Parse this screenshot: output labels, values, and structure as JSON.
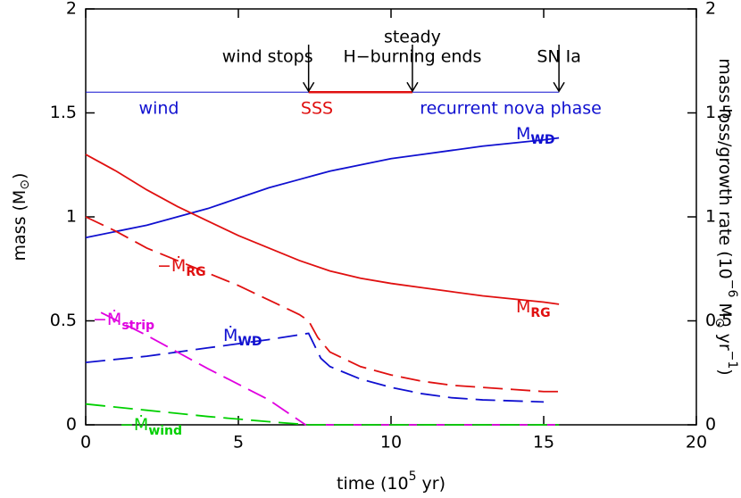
{
  "chart_data": {
    "type": "line",
    "xlabel": [
      "time (10",
      "5",
      " yr)"
    ],
    "ylabel": [
      "mass (M",
      "⊙",
      ")"
    ],
    "y2label": [
      "mass loss/growth rate (10",
      "−6",
      " M",
      "⊙",
      " yr",
      "−1",
      ")"
    ],
    "xlim": [
      0,
      20
    ],
    "xticks": [
      0,
      5,
      10,
      15,
      20
    ],
    "ylim": [
      0,
      2
    ],
    "yticks": [
      0,
      0.5,
      1,
      1.5,
      2
    ],
    "y2lim": [
      0,
      2
    ],
    "y2ticks": [
      0,
      0.5,
      1,
      1.5,
      2
    ],
    "series": [
      {
        "label": "M",
        "label_sub": "WD",
        "color": "#1010d0",
        "dashed": false,
        "x": [
          0,
          1,
          2,
          3,
          4,
          5,
          6,
          7,
          7.5,
          8,
          9,
          10,
          11,
          12,
          13,
          14,
          15,
          15.5
        ],
        "values": [
          0.9,
          0.93,
          0.96,
          1.0,
          1.04,
          1.09,
          1.14,
          1.18,
          1.2,
          1.22,
          1.25,
          1.28,
          1.3,
          1.32,
          1.34,
          1.355,
          1.37,
          1.38
        ]
      },
      {
        "label": "M",
        "label_sub": "RG",
        "color": "#e01010",
        "dashed": false,
        "x": [
          0,
          1,
          2,
          3,
          4,
          5,
          6,
          7,
          8,
          9,
          10,
          11,
          12,
          13,
          14,
          15,
          15.5
        ],
        "values": [
          1.3,
          1.22,
          1.13,
          1.05,
          0.98,
          0.91,
          0.85,
          0.79,
          0.74,
          0.705,
          0.68,
          0.66,
          0.64,
          0.62,
          0.605,
          0.59,
          0.58
        ]
      },
      {
        "label": "−Ṁ",
        "label_sub": "RG",
        "color": "#e01010",
        "dashed": true,
        "axis": "y2",
        "x": [
          0,
          1,
          2,
          3,
          4,
          5,
          6,
          7,
          7.3,
          7.6,
          8,
          9,
          10,
          11,
          12,
          13,
          14,
          15,
          15.5
        ],
        "values": [
          1.0,
          0.93,
          0.85,
          0.79,
          0.73,
          0.67,
          0.6,
          0.53,
          0.5,
          0.42,
          0.35,
          0.28,
          0.24,
          0.21,
          0.19,
          0.18,
          0.17,
          0.16,
          0.16
        ]
      },
      {
        "label": "Ṁ",
        "label_sub": "WD",
        "color": "#1010d0",
        "dashed": true,
        "axis": "y2",
        "x": [
          0,
          2,
          4,
          6,
          7.3,
          7.7,
          8,
          9,
          10,
          11,
          12,
          13,
          14,
          15
        ],
        "values": [
          0.3,
          0.33,
          0.37,
          0.41,
          0.44,
          0.32,
          0.28,
          0.22,
          0.18,
          0.15,
          0.13,
          0.12,
          0.115,
          0.11
        ]
      },
      {
        "label": "−Ṁ",
        "label_sub": "strip",
        "color": "#e000e0",
        "dashed": true,
        "axis": "y2",
        "x": [
          0.5,
          2,
          4,
          6,
          7.2,
          15.5
        ],
        "values": [
          0.54,
          0.43,
          0.27,
          0.12,
          0,
          0
        ]
      },
      {
        "label": "−Ṁ",
        "label_sub": "wind",
        "color": "#00d000",
        "dashed": true,
        "axis": "y2",
        "x": [
          0,
          2,
          4,
          6,
          7.3,
          15.5
        ],
        "values": [
          0.1,
          0.07,
          0.04,
          0.015,
          0,
          0
        ]
      }
    ],
    "phase_line_y": 1.6,
    "phase_line_color": "#1010d0",
    "sss_color": "#e01010",
    "events": [
      {
        "label": [
          "wind stops"
        ],
        "x": 7.3
      },
      {
        "label": [
          "steady",
          "H−burning ends"
        ],
        "x": 10.7
      },
      {
        "label": [
          "SN Ia"
        ],
        "x": 15.5
      }
    ],
    "phases": [
      "wind",
      "SSS",
      "recurrent nova phase"
    ]
  }
}
